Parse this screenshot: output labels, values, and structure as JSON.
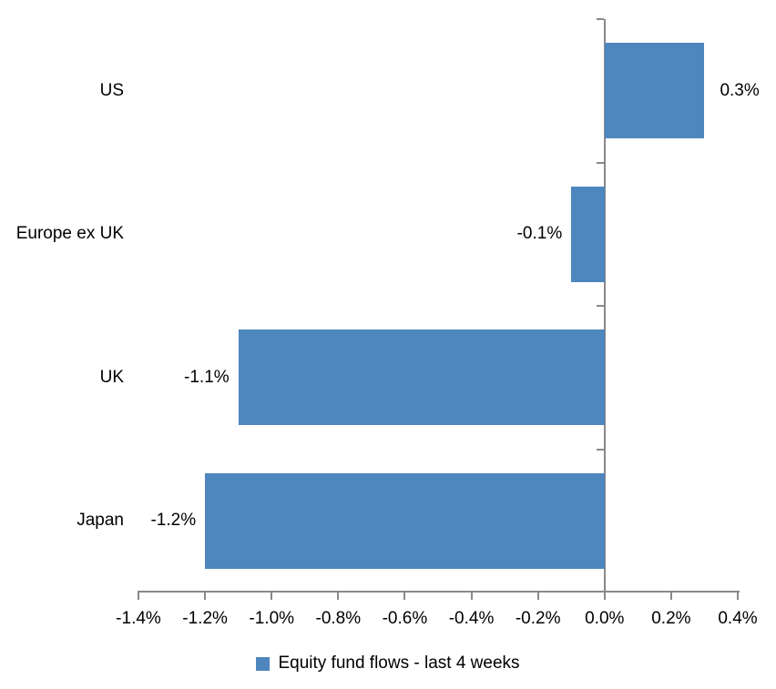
{
  "chart_data": {
    "type": "bar",
    "orientation": "horizontal",
    "title": "",
    "xlabel": "",
    "ylabel": "",
    "series_name": "Equity fund flows - last 4 weeks",
    "categories": [
      "US",
      "Europe ex UK",
      "UK",
      "Japan"
    ],
    "values": [
      0.3,
      -0.1,
      -1.1,
      -1.2
    ],
    "value_labels": [
      "0.3%",
      "-0.1%",
      "-1.1%",
      "-1.2%"
    ],
    "xlim": [
      -1.4,
      0.4
    ],
    "x_tick_values": [
      -1.4,
      -1.2,
      -1.0,
      -0.8,
      -0.6,
      -0.4,
      -0.2,
      0.0,
      0.2,
      0.4
    ],
    "x_ticks": [
      "-1.4%",
      "-1.2%",
      "-1.0%",
      "-0.8%",
      "-0.6%",
      "-0.4%",
      "-0.2%",
      "0.0%",
      "0.2%",
      "0.4%"
    ],
    "grid": false,
    "legend_position": "bottom",
    "bar_color": "#4E86BE",
    "axis_color": "#898989",
    "text_color": "#000000",
    "background_color": "#FFFFFF"
  }
}
